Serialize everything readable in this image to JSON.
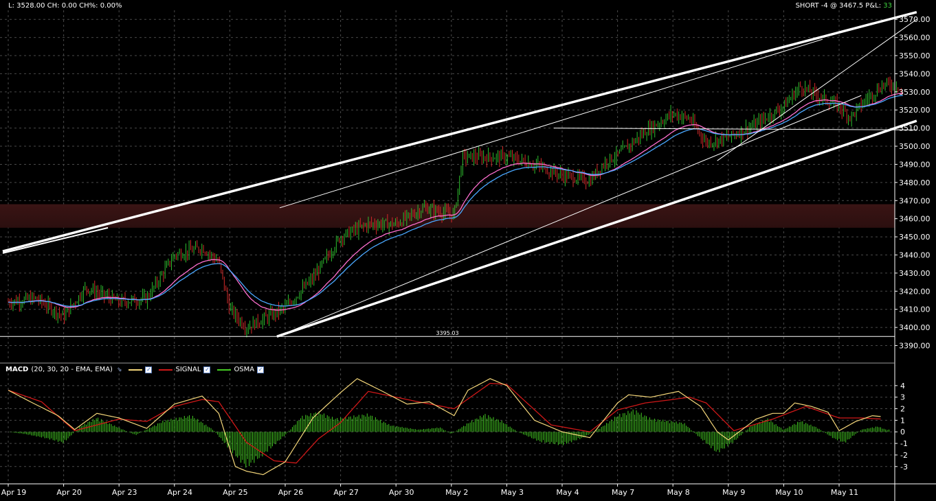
{
  "header": {
    "left_stats": "L: 3528.00 CH: 0.00  CH%: 0.00%",
    "position_text": "SHORT -4 @ 3467.5 P&L:",
    "pnl_value": "33"
  },
  "macd_legend": {
    "title": "MACD",
    "params": "(20, 30, 20 - EMA, EMA)",
    "signal_label": "SIGNAL",
    "osma_label": "OSMA",
    "cursor_icon": "cursor-icon",
    "check_icon": "checkbox-icon"
  },
  "colors": {
    "background": "#000000",
    "grid": "#4a4a4a",
    "up_bar": "#2fbf2f",
    "down_bar": "#d42a2a",
    "ema_fast": "#4aa8ff",
    "ema_slow": "#ff6fd0",
    "macd_line": "#f5d77a",
    "signal_line": "#d01818",
    "osma_bars": "#44cc22",
    "zone": "#2b0f0f",
    "pnl": "#3fd43f"
  },
  "chart_data": [
    {
      "type": "candlestick",
      "x_unit": "day index (0 = Apr 19)",
      "x_range": [
        0,
        16.8
      ],
      "ylim": [
        3383,
        3575
      ],
      "y_ticks": [
        3390,
        3400,
        3410,
        3420,
        3430,
        3440,
        3450,
        3460,
        3470,
        3480,
        3490,
        3500,
        3510,
        3520,
        3530,
        3540,
        3550,
        3560,
        3570
      ],
      "x_ticks": [
        "Apr 19",
        "Apr 20",
        "Apr 23",
        "Apr 24",
        "Apr 25",
        "Apr 26",
        "Apr 27",
        "Apr 30",
        "May 2",
        "May 3",
        "May 4",
        "May 7",
        "May 8",
        "May 9",
        "May 10",
        "May 11"
      ],
      "price_path": [
        [
          0,
          3414
        ],
        [
          0.5,
          3416
        ],
        [
          1,
          3406
        ],
        [
          1.4,
          3422
        ],
        [
          2,
          3414
        ],
        [
          2.5,
          3416
        ],
        [
          3,
          3440
        ],
        [
          3.5,
          3444
        ],
        [
          3.8,
          3436
        ],
        [
          4,
          3410
        ],
        [
          4.3,
          3400
        ],
        [
          4.7,
          3406
        ],
        [
          5,
          3411
        ],
        [
          5.5,
          3427
        ],
        [
          6,
          3450
        ],
        [
          6.5,
          3457
        ],
        [
          7,
          3457
        ],
        [
          7.5,
          3466
        ],
        [
          8.05,
          3462
        ],
        [
          8.2,
          3494
        ],
        [
          9,
          3494
        ],
        [
          9.5,
          3490
        ],
        [
          10,
          3484
        ],
        [
          10.5,
          3481
        ],
        [
          10.8,
          3492
        ],
        [
          11,
          3495
        ],
        [
          11.5,
          3508
        ],
        [
          12,
          3518
        ],
        [
          12.3,
          3515
        ],
        [
          12.6,
          3502
        ],
        [
          13,
          3505
        ],
        [
          13.5,
          3512
        ],
        [
          14,
          3522
        ],
        [
          14.3,
          3533
        ],
        [
          14.6,
          3528
        ],
        [
          15,
          3522
        ],
        [
          15.2,
          3516
        ],
        [
          15.5,
          3526
        ],
        [
          15.8,
          3534
        ],
        [
          16.05,
          3534
        ],
        [
          16.15,
          3528
        ]
      ],
      "horizontal_line": {
        "value": 3395.03,
        "label": "3395.03"
      },
      "zone": [
        3455,
        3468
      ],
      "trendlines": [
        {
          "from": [
            -0.1,
            3442
          ],
          "to": [
            16.4,
            3574
          ]
        },
        {
          "from": [
            -0.1,
            3441
          ],
          "to": [
            1.8,
            3455
          ]
        },
        {
          "from": [
            4.85,
            3395
          ],
          "to": [
            16.4,
            3514
          ]
        },
        {
          "from": [
            4.9,
            3466
          ],
          "to": [
            14.7,
            3559
          ]
        },
        {
          "from": [
            5.1,
            3398
          ],
          "to": [
            15.4,
            3528
          ]
        },
        {
          "from": [
            12.8,
            3492
          ],
          "to": [
            16.4,
            3570
          ]
        },
        {
          "from": [
            9.85,
            3510
          ],
          "to": [
            16.4,
            3509
          ]
        }
      ]
    },
    {
      "type": "line",
      "name": "MACD",
      "ylim": [
        -4.2,
        5.0
      ],
      "y_ticks": [
        -3,
        -2,
        -1,
        0,
        1,
        2,
        3,
        4
      ],
      "series": [
        {
          "name": "MACD",
          "color": "#f5d77a",
          "values": [
            [
              0,
              3.6
            ],
            [
              0.4,
              2.6
            ],
            [
              0.9,
              1.4
            ],
            [
              1.2,
              0.2
            ],
            [
              1.6,
              1.6
            ],
            [
              2,
              1.2
            ],
            [
              2.5,
              0.3
            ],
            [
              3,
              2.4
            ],
            [
              3.5,
              3.1
            ],
            [
              3.8,
              1.6
            ],
            [
              4.1,
              -3.0
            ],
            [
              4.3,
              -3.4
            ],
            [
              4.6,
              -3.7
            ],
            [
              5,
              -2.6
            ],
            [
              5.5,
              1.2
            ],
            [
              6,
              3.4
            ],
            [
              6.3,
              4.6
            ],
            [
              6.8,
              3.4
            ],
            [
              7.2,
              2.4
            ],
            [
              7.6,
              2.6
            ],
            [
              8.05,
              1.4
            ],
            [
              8.3,
              3.6
            ],
            [
              8.7,
              4.6
            ],
            [
              9,
              4.0
            ],
            [
              9.5,
              1.0
            ],
            [
              10,
              0.0
            ],
            [
              10.5,
              -0.5
            ],
            [
              11,
              2.5
            ],
            [
              11.2,
              3.2
            ],
            [
              11.6,
              3.0
            ],
            [
              12.1,
              3.5
            ],
            [
              12.5,
              2.2
            ],
            [
              12.8,
              0.0
            ],
            [
              13,
              -0.7
            ],
            [
              13.5,
              1.1
            ],
            [
              13.8,
              1.6
            ],
            [
              14,
              1.6
            ],
            [
              14.2,
              2.5
            ],
            [
              14.5,
              2.2
            ],
            [
              14.8,
              1.7
            ],
            [
              15,
              0.1
            ],
            [
              15.3,
              0.9
            ],
            [
              15.6,
              1.4
            ],
            [
              15.8,
              1.3
            ]
          ]
        },
        {
          "name": "SIGNAL",
          "color": "#d01818",
          "values": [
            [
              0,
              3.6
            ],
            [
              0.6,
              2.6
            ],
            [
              1.2,
              0.1
            ],
            [
              2,
              1.1
            ],
            [
              2.5,
              0.9
            ],
            [
              3,
              2.2
            ],
            [
              3.5,
              2.8
            ],
            [
              3.8,
              2.6
            ],
            [
              4.3,
              -0.9
            ],
            [
              4.8,
              -2.5
            ],
            [
              5.2,
              -2.7
            ],
            [
              5.6,
              -0.6
            ],
            [
              6,
              0.8
            ],
            [
              6.5,
              3.5
            ],
            [
              7.4,
              2.6
            ],
            [
              8.05,
              2.0
            ],
            [
              8.7,
              4.2
            ],
            [
              9,
              4.1
            ],
            [
              9.8,
              0.6
            ],
            [
              10.5,
              0.0
            ],
            [
              11,
              1.9
            ],
            [
              11.5,
              2.5
            ],
            [
              12,
              2.8
            ],
            [
              12.3,
              3.0
            ],
            [
              12.6,
              2.5
            ],
            [
              13.1,
              0.1
            ],
            [
              13.8,
              1.1
            ],
            [
              14.4,
              2.2
            ],
            [
              15,
              1.2
            ],
            [
              15.4,
              1.2
            ],
            [
              15.8,
              1.1
            ]
          ]
        },
        {
          "name": "OSMA",
          "color": "#44cc22",
          "type": "histogram",
          "values": [
            [
              0,
              0.0
            ],
            [
              0.3,
              -0.2
            ],
            [
              0.7,
              -0.6
            ],
            [
              1,
              -1.0
            ],
            [
              1.3,
              0.5
            ],
            [
              1.6,
              1.3
            ],
            [
              1.9,
              0.6
            ],
            [
              2.3,
              -0.3
            ],
            [
              2.8,
              1.0
            ],
            [
              3.3,
              1.5
            ],
            [
              3.7,
              0.2
            ],
            [
              4,
              -1.6
            ],
            [
              4.3,
              -3.2
            ],
            [
              4.6,
              -2.1
            ],
            [
              5,
              -0.3
            ],
            [
              5.3,
              1.4
            ],
            [
              5.6,
              1.8
            ],
            [
              5.9,
              1.2
            ],
            [
              6.2,
              1.4
            ],
            [
              6.5,
              1.6
            ],
            [
              6.9,
              0.6
            ],
            [
              7.4,
              0.2
            ],
            [
              7.8,
              0.4
            ],
            [
              8.0,
              -0.2
            ],
            [
              8.3,
              0.8
            ],
            [
              8.6,
              1.6
            ],
            [
              8.9,
              1.0
            ],
            [
              9.2,
              0.0
            ],
            [
              9.6,
              -0.9
            ],
            [
              10,
              -1.2
            ],
            [
              10.4,
              -0.5
            ],
            [
              10.7,
              0.4
            ],
            [
              11,
              1.5
            ],
            [
              11.3,
              2.0
            ],
            [
              11.6,
              1.2
            ],
            [
              11.9,
              1.0
            ],
            [
              12.2,
              0.8
            ],
            [
              12.5,
              -0.6
            ],
            [
              12.8,
              -1.9
            ],
            [
              13.1,
              -0.9
            ],
            [
              13.4,
              0.5
            ],
            [
              13.7,
              1.2
            ],
            [
              14,
              0.2
            ],
            [
              14.3,
              1.0
            ],
            [
              14.6,
              0.4
            ],
            [
              14.9,
              -0.6
            ],
            [
              15.1,
              -1.0
            ],
            [
              15.4,
              0.2
            ],
            [
              15.7,
              0.5
            ],
            [
              15.85,
              0.2
            ]
          ]
        }
      ]
    }
  ]
}
